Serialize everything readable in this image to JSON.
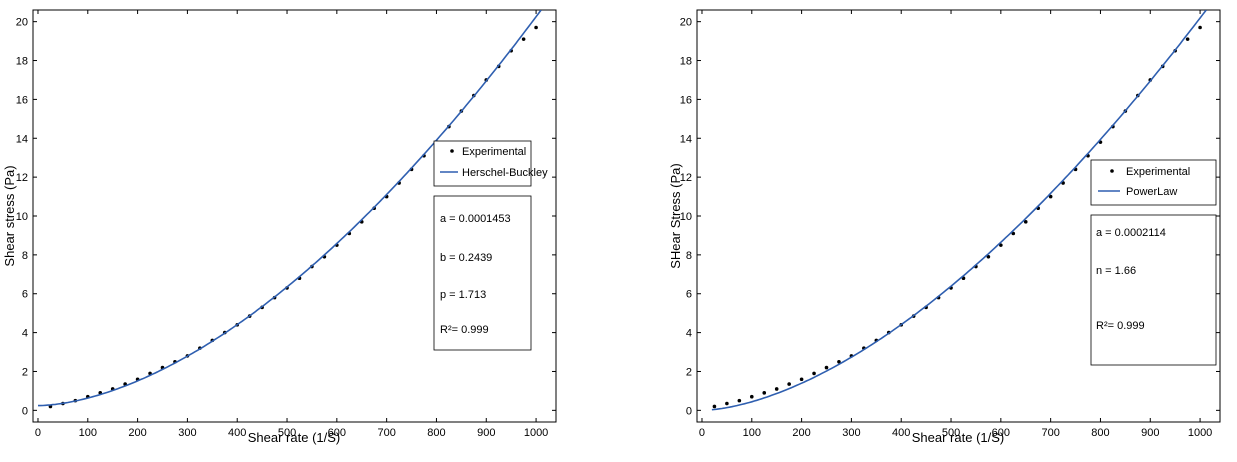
{
  "chart_data": [
    {
      "type": "scatter",
      "xlabel": "Shear rate (1/S)",
      "ylabel": "Shear stress (Pa)",
      "xlim": [
        -10,
        1040
      ],
      "ylim": [
        -0.6,
        20.6
      ],
      "xticks": [
        0,
        100,
        200,
        300,
        400,
        500,
        600,
        700,
        800,
        900,
        1000
      ],
      "yticks": [
        0,
        2,
        4,
        6,
        8,
        10,
        12,
        14,
        16,
        18,
        20
      ],
      "legend_placement": "right",
      "legend": [
        "Experimental",
        "Herschel-Buckley"
      ],
      "params": [
        "a =   0.0001453",
        "b =     0.2439",
        "p =      1.713",
        "R²= 0.999"
      ],
      "fit": {
        "model": "herschel-bulkley",
        "a": 0.0001453,
        "b": 0.2439,
        "p": 1.713
      },
      "series": [
        {
          "name": "Experimental",
          "x": [
            25,
            50,
            75,
            100,
            125,
            150,
            175,
            200,
            225,
            250,
            275,
            300,
            325,
            350,
            375,
            400,
            425,
            450,
            475,
            500,
            525,
            550,
            575,
            600,
            625,
            650,
            675,
            700,
            725,
            750,
            775,
            800,
            825,
            850,
            875,
            900,
            925,
            950,
            975,
            1000
          ],
          "y": [
            0.2,
            0.35,
            0.5,
            0.7,
            0.9,
            1.1,
            1.35,
            1.6,
            1.9,
            2.2,
            2.5,
            2.8,
            3.2,
            3.6,
            4.0,
            4.4,
            4.85,
            5.3,
            5.8,
            6.3,
            6.8,
            7.4,
            7.9,
            8.5,
            9.1,
            9.7,
            10.4,
            11.0,
            11.7,
            12.4,
            13.1,
            13.8,
            14.6,
            15.4,
            16.2,
            17.0,
            17.7,
            18.5,
            19.1,
            19.7
          ]
        }
      ],
      "colors": {
        "fit_line": "#2f5fb0",
        "points": "#000000"
      }
    },
    {
      "type": "scatter",
      "xlabel": "Shear rate (1/S)",
      "ylabel": "SHear Stress (Pa)",
      "xlim": [
        -10,
        1040
      ],
      "ylim": [
        -0.6,
        20.6
      ],
      "xticks": [
        0,
        100,
        200,
        300,
        400,
        500,
        600,
        700,
        800,
        900,
        1000
      ],
      "yticks": [
        0,
        2,
        4,
        6,
        8,
        10,
        12,
        14,
        16,
        18,
        20
      ],
      "legend_placement": "right",
      "legend": [
        "Experimental",
        "PowerLaw"
      ],
      "params": [
        "a = 0.0002114",
        "n = 1.66",
        "R²= 0.999"
      ],
      "fit": {
        "model": "power-law",
        "a": 0.0002114,
        "n": 1.66
      },
      "series": [
        {
          "name": "Experimental",
          "x": [
            25,
            50,
            75,
            100,
            125,
            150,
            175,
            200,
            225,
            250,
            275,
            300,
            325,
            350,
            375,
            400,
            425,
            450,
            475,
            500,
            525,
            550,
            575,
            600,
            625,
            650,
            675,
            700,
            725,
            750,
            775,
            800,
            825,
            850,
            875,
            900,
            925,
            950,
            975,
            1000
          ],
          "y": [
            0.2,
            0.35,
            0.5,
            0.7,
            0.9,
            1.1,
            1.35,
            1.6,
            1.9,
            2.2,
            2.5,
            2.8,
            3.2,
            3.6,
            4.0,
            4.4,
            4.85,
            5.3,
            5.8,
            6.3,
            6.8,
            7.4,
            7.9,
            8.5,
            9.1,
            9.7,
            10.4,
            11.0,
            11.7,
            12.4,
            13.1,
            13.8,
            14.6,
            15.4,
            16.2,
            17.0,
            17.7,
            18.5,
            19.1,
            19.7
          ]
        }
      ],
      "colors": {
        "fit_line": "#2f5fb0",
        "points": "#000000"
      }
    }
  ]
}
